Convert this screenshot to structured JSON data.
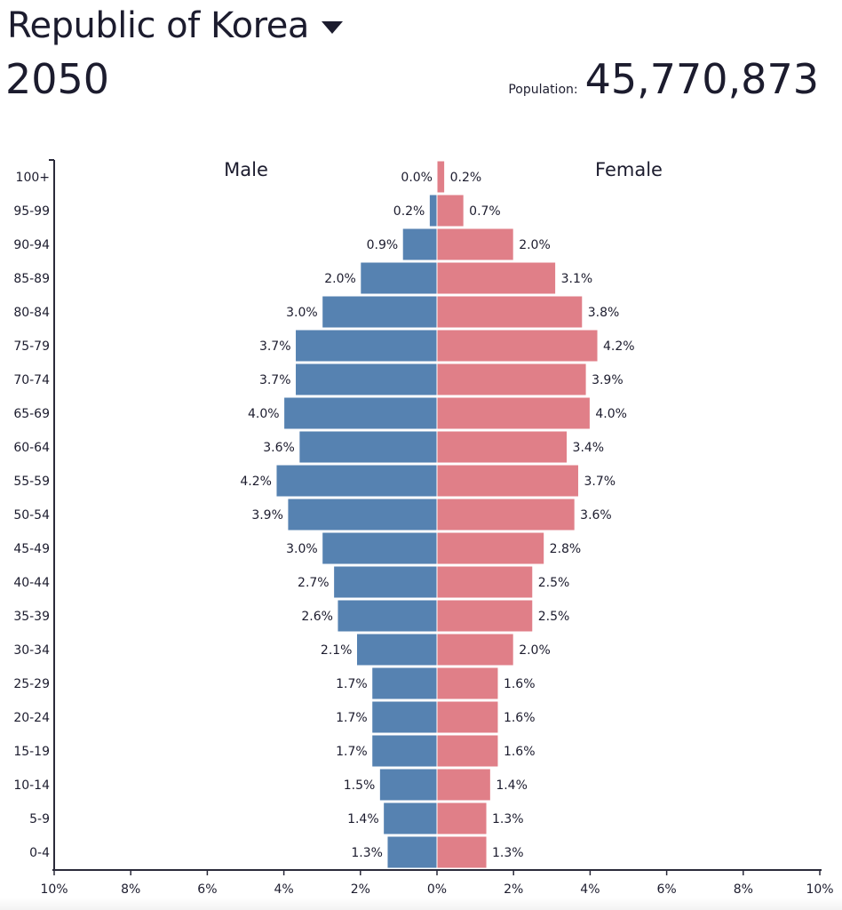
{
  "header": {
    "country": "Republic of Korea",
    "year": "2050",
    "population_label": "Population:",
    "population_value": "45,770,873"
  },
  "colors": {
    "male": "#5682b1",
    "female": "#e07f88",
    "axis": "#2a2a3a"
  },
  "chart_data": {
    "type": "bar",
    "orientation": "horizontal-pyramid",
    "categories": [
      "100+",
      "95-99",
      "90-94",
      "85-89",
      "80-84",
      "75-79",
      "70-74",
      "65-69",
      "60-64",
      "55-59",
      "50-54",
      "45-49",
      "40-44",
      "35-39",
      "30-34",
      "25-29",
      "20-24",
      "15-19",
      "10-14",
      "5-9",
      "0-4"
    ],
    "series": [
      {
        "name": "Male",
        "values": [
          0.0,
          0.2,
          0.9,
          2.0,
          3.0,
          3.7,
          3.7,
          4.0,
          3.6,
          4.2,
          3.9,
          3.0,
          2.7,
          2.6,
          2.1,
          1.7,
          1.7,
          1.7,
          1.5,
          1.4,
          1.3
        ]
      },
      {
        "name": "Female",
        "values": [
          0.2,
          0.7,
          2.0,
          3.1,
          3.8,
          4.2,
          3.9,
          4.0,
          3.4,
          3.7,
          3.6,
          2.8,
          2.5,
          2.5,
          2.0,
          1.6,
          1.6,
          1.6,
          1.4,
          1.3,
          1.3
        ]
      }
    ],
    "xlim": [
      -10,
      10
    ],
    "xticks": [
      "10%",
      "8%",
      "6%",
      "4%",
      "2%",
      "0%",
      "2%",
      "4%",
      "6%",
      "8%",
      "10%"
    ],
    "unit": "%"
  }
}
